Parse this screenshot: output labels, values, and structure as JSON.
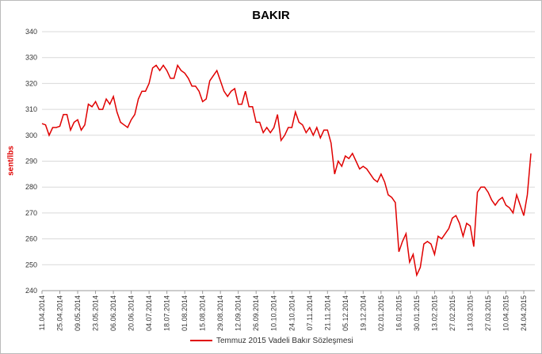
{
  "chart_data": {
    "type": "line",
    "title": "BAKIR",
    "y_label": "sent/lbs",
    "categories": [
      "11.04.2014",
      null,
      null,
      null,
      null,
      "25.04.2014",
      null,
      null,
      null,
      null,
      "09.05.2014",
      null,
      null,
      null,
      null,
      "23.05.2014",
      null,
      null,
      null,
      null,
      "06.06.2014",
      null,
      null,
      null,
      null,
      "20.06.2014",
      null,
      null,
      null,
      null,
      "04.07.2014",
      null,
      null,
      null,
      null,
      "18.07.2014",
      null,
      null,
      null,
      null,
      "01.08.2014",
      null,
      null,
      null,
      null,
      "15.08.2014",
      null,
      null,
      null,
      null,
      "29.08.2014",
      null,
      null,
      null,
      null,
      "12.09.2014",
      null,
      null,
      null,
      null,
      "26.09.2014",
      null,
      null,
      null,
      null,
      "10.10.2014",
      null,
      null,
      null,
      null,
      "24.10.2014",
      null,
      null,
      null,
      null,
      "07.11.2014",
      null,
      null,
      null,
      null,
      "21.11.2014",
      null,
      null,
      null,
      null,
      "05.12.2014",
      null,
      null,
      null,
      null,
      "19.12.2014",
      null,
      null,
      null,
      null,
      "02.01.2015",
      null,
      null,
      null,
      null,
      "16.01.2015",
      null,
      null,
      null,
      null,
      "30.01.2015",
      null,
      null,
      null,
      null,
      "13.02.2015",
      null,
      null,
      null,
      null,
      "27.02.2015",
      null,
      null,
      null,
      null,
      "13.03.2015",
      null,
      null,
      null,
      null,
      "27.03.2015",
      null,
      null,
      null,
      null,
      "10.04.2015",
      null,
      null,
      null,
      null,
      "24.04.2015",
      null,
      null
    ],
    "series": [
      {
        "name": "Temmuz 2015 Vadeli Bakır Sözleşmesi",
        "color": "#e00000",
        "values": [
          304.5,
          304,
          300,
          303,
          303,
          303.5,
          308,
          308,
          302,
          305,
          306,
          302,
          304,
          312,
          311,
          313,
          310,
          310,
          314,
          312,
          315,
          309,
          305,
          304,
          303,
          306,
          308,
          314,
          317,
          317,
          320,
          326,
          327,
          325,
          327,
          325,
          322,
          322,
          327,
          325,
          324,
          322,
          319,
          319,
          317,
          313,
          314,
          321,
          323,
          325,
          321,
          317,
          315,
          317,
          318,
          312,
          312,
          317,
          311,
          311,
          305,
          305,
          301,
          303,
          301,
          303,
          308,
          298,
          300,
          303,
          303,
          309,
          305,
          304,
          301,
          303,
          300,
          303,
          299,
          302,
          302,
          297,
          285,
          290,
          288,
          292,
          291,
          293,
          290,
          287,
          288,
          287,
          285,
          283,
          282,
          285,
          282,
          277,
          276,
          274,
          255,
          259,
          262,
          251,
          254,
          246,
          249,
          258,
          259,
          258,
          254,
          261,
          260,
          262,
          264,
          268,
          269,
          266,
          261,
          266,
          265,
          257,
          278,
          280,
          280,
          278,
          275,
          273,
          275,
          276,
          273,
          272,
          270,
          277,
          273,
          269,
          277,
          293
        ]
      }
    ],
    "ylim": [
      240,
      340
    ],
    "yticks": [
      240,
      250,
      260,
      270,
      280,
      290,
      300,
      310,
      320,
      330,
      340
    ],
    "grid": true,
    "legend": "bottom"
  }
}
